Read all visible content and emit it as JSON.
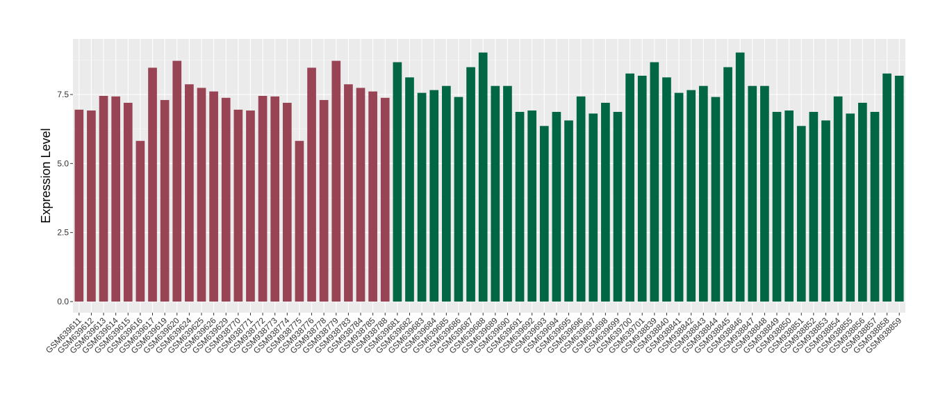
{
  "chart_data": {
    "type": "bar",
    "ylabel": "Expression Level",
    "xlabel": "",
    "ylim": [
      0,
      9.3
    ],
    "yticks": [
      0.0,
      2.5,
      5.0,
      7.5
    ],
    "ytick_labels": [
      "0.0",
      "2.5",
      "5.0",
      "7.5"
    ],
    "grid": true,
    "legend": "none",
    "colors": {
      "group_a": "#994455",
      "group_b": "#006644",
      "panel": "#EBEBEB",
      "grid_major": "#FFFFFF",
      "grid_minor": "#F5F5F5"
    },
    "categories": [
      "GSM639611",
      "GSM639612",
      "GSM639613",
      "GSM639614",
      "GSM639615",
      "GSM639616",
      "GSM639617",
      "GSM639619",
      "GSM639620",
      "GSM639624",
      "GSM639625",
      "GSM639626",
      "GSM639629",
      "GSM938770",
      "GSM938771",
      "GSM938772",
      "GSM938773",
      "GSM938774",
      "GSM938775",
      "GSM938776",
      "GSM938778",
      "GSM938779",
      "GSM938783",
      "GSM938784",
      "GSM938785",
      "GSM938788",
      "GSM639681",
      "GSM639682",
      "GSM639683",
      "GSM639684",
      "GSM639685",
      "GSM639686",
      "GSM639687",
      "GSM639688",
      "GSM639689",
      "GSM639690",
      "GSM639691",
      "GSM639692",
      "GSM639693",
      "GSM639694",
      "GSM639695",
      "GSM639696",
      "GSM639697",
      "GSM639698",
      "GSM639699",
      "GSM639700",
      "GSM639701",
      "GSM938839",
      "GSM938840",
      "GSM938841",
      "GSM938842",
      "GSM938843",
      "GSM938844",
      "GSM938845",
      "GSM938846",
      "GSM938847",
      "GSM938848",
      "GSM938849",
      "GSM938850",
      "GSM938851",
      "GSM938852",
      "GSM938853",
      "GSM938854",
      "GSM938855",
      "GSM938856",
      "GSM938857",
      "GSM938858",
      "GSM938859"
    ],
    "values": [
      6.95,
      6.92,
      7.45,
      7.43,
      7.2,
      5.82,
      8.47,
      7.3,
      8.72,
      7.87,
      7.74,
      7.61,
      7.38,
      6.95,
      6.92,
      7.45,
      7.43,
      7.2,
      5.82,
      8.47,
      7.3,
      8.72,
      7.87,
      7.74,
      7.61,
      7.38,
      8.67,
      8.12,
      7.56,
      7.66,
      7.81,
      7.41,
      8.49,
      9.02,
      7.81,
      7.81,
      6.87,
      6.92,
      6.36,
      6.87,
      6.56,
      7.43,
      6.81,
      7.2,
      6.87,
      8.26,
      8.18,
      8.67,
      8.12,
      7.56,
      7.66,
      7.81,
      7.41,
      8.49,
      9.02,
      7.81,
      7.81,
      6.87,
      6.92,
      6.36,
      6.87,
      6.56,
      7.43,
      6.81,
      7.2,
      6.87,
      8.26,
      8.18
    ],
    "group_sizes": [
      26,
      42
    ]
  }
}
